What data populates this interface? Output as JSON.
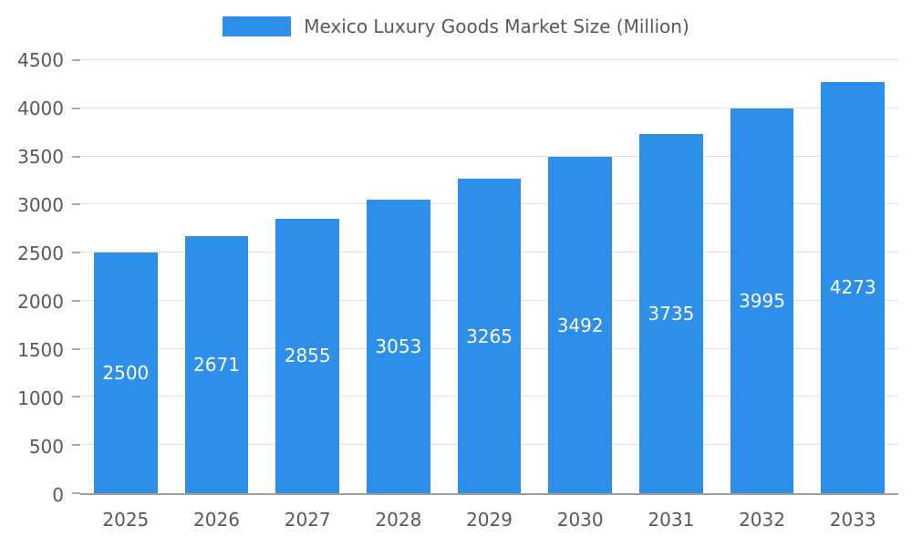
{
  "legend": {
    "label": "Mexico Luxury Goods Market Size (Million)"
  },
  "chart_data": {
    "type": "bar",
    "title": "Mexico Luxury Goods Market Size (Million)",
    "categories": [
      "2025",
      "2026",
      "2027",
      "2028",
      "2029",
      "2030",
      "2031",
      "2032",
      "2033"
    ],
    "values": [
      2500,
      2671,
      2855,
      3053,
      3265,
      3492,
      3735,
      3995,
      4273
    ],
    "xlabel": "",
    "ylabel": "",
    "ylim": [
      0,
      4500
    ],
    "ytick_step": 500,
    "grid": true,
    "legend_position": "top",
    "colors": {
      "bar": "#2E8FEA",
      "bar_label": "#ffffff",
      "axis_text": "#595959",
      "gridline": "#e3e3e3",
      "axis_line": "#9e9e9e"
    }
  }
}
